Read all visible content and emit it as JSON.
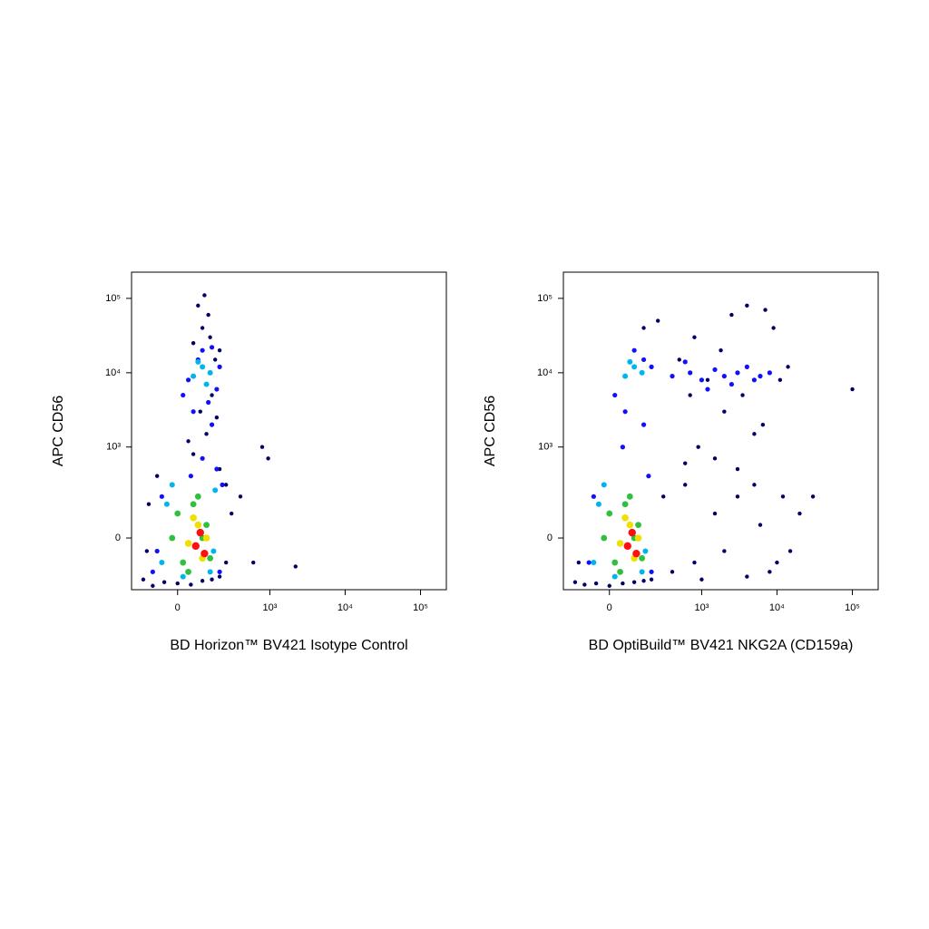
{
  "chart_data": [
    {
      "type": "scatter",
      "xscale": "biexponential",
      "yscale": "biexponential",
      "x_label": "BD Horizon™ BV421 Isotype Control",
      "y_label": "APC CD56",
      "xlim": [
        -230,
        220000
      ],
      "ylim": [
        -285,
        225000
      ],
      "xticks": [
        0,
        {
          "value": 1000,
          "label": "10³"
        },
        {
          "value": 10000,
          "label": "10⁴"
        },
        {
          "value": 100000,
          "label": "10⁵"
        }
      ],
      "yticks": [
        0,
        {
          "value": 1000,
          "label": "10³"
        },
        {
          "value": 10000,
          "label": "10⁴"
        },
        {
          "value": 100000,
          "label": "10⁵"
        }
      ],
      "series": [
        {
          "color": "#000066",
          "x": [
            -150,
            -100,
            -50,
            0,
            50,
            100,
            150,
            200,
            250,
            -120,
            300,
            200,
            -80,
            60,
            120,
            180,
            40,
            90,
            150,
            200,
            100,
            80,
            130,
            60,
            170,
            110,
            790,
            2200,
            950,
            600,
            400,
            -130,
            250,
            20,
            140
          ],
          "y": [
            -200,
            -250,
            -220,
            -230,
            -240,
            -210,
            -200,
            -180,
            -100,
            150,
            100,
            500,
            400,
            800,
            1500,
            2500,
            1200,
            3000,
            5000,
            20000,
            40000,
            80000,
            60000,
            25000,
            15000,
            110000,
            1000,
            -120,
            700,
            -100,
            200,
            -50,
            300,
            -180,
            30000
          ]
        },
        {
          "color": "#1010ff",
          "x": [
            20,
            60,
            100,
            150,
            200,
            40,
            180,
            80,
            130,
            -100,
            -60,
            200,
            220,
            -80,
            180,
            100,
            50,
            150
          ],
          "y": [
            5000,
            3000,
            20000,
            22000,
            12000,
            8000,
            6000,
            15000,
            4000,
            -150,
            200,
            -150,
            300,
            -50,
            500,
            700,
            400,
            2000
          ]
        },
        {
          "color": "#00b4f0",
          "x": [
            60,
            100,
            140,
            80,
            120,
            -60,
            -20,
            160,
            170,
            -40,
            140,
            20
          ],
          "y": [
            9000,
            12000,
            10000,
            14000,
            7000,
            -100,
            300,
            -50,
            250,
            150,
            -150,
            -180
          ]
        },
        {
          "color": "#30c040",
          "x": [
            -20,
            20,
            60,
            100,
            140,
            0,
            80,
            120,
            40
          ],
          "y": [
            0,
            -100,
            150,
            0,
            -80,
            100,
            200,
            50,
            -150
          ]
        },
        {
          "color": "#f0e000",
          "x": [
            40,
            80,
            100,
            60,
            120
          ],
          "y": [
            -20,
            50,
            -80,
            80,
            0
          ]
        },
        {
          "color": "#ff1010",
          "x": [
            70,
            90,
            110
          ],
          "y": [
            -30,
            20,
            -60
          ]
        }
      ]
    },
    {
      "type": "scatter",
      "xscale": "biexponential",
      "yscale": "biexponential",
      "x_label": "BD OptiBuild™ BV421 NKG2A (CD159a)",
      "y_label": "APC CD56",
      "xlim": [
        -230,
        220000
      ],
      "ylim": [
        -285,
        225000
      ],
      "xticks": [
        0,
        {
          "value": 1000,
          "label": "10³"
        },
        {
          "value": 10000,
          "label": "10⁴"
        },
        {
          "value": 100000,
          "label": "10⁵"
        }
      ],
      "yticks": [
        0,
        {
          "value": 1000,
          "label": "10³"
        },
        {
          "value": 10000,
          "label": "10⁴"
        },
        {
          "value": 100000,
          "label": "10⁵"
        }
      ],
      "series": [
        {
          "color": "#000066",
          "x": [
            -150,
            -100,
            -50,
            0,
            50,
            100,
            150,
            200,
            300,
            400,
            600,
            800,
            1000,
            1500,
            2000,
            3000,
            4000,
            5000,
            6000,
            8000,
            10000,
            12000,
            15000,
            20000,
            700,
            1200,
            2500,
            4000,
            7000,
            9000,
            600,
            900,
            1500,
            3000,
            5000,
            -130,
            100000,
            30000,
            800,
            2000,
            500,
            1800,
            3500,
            6500,
            11000,
            14000,
            250,
            150
          ],
          "y": [
            -220,
            -240,
            -230,
            -250,
            -230,
            -220,
            -210,
            -200,
            200,
            -150,
            300,
            -100,
            -200,
            100,
            -50,
            200,
            -180,
            300,
            50,
            -150,
            -100,
            200,
            -50,
            100,
            5000,
            8000,
            60000,
            80000,
            70000,
            40000,
            600,
            1000,
            700,
            500,
            1500,
            -100,
            6000,
            200,
            30000,
            3000,
            15000,
            20000,
            5000,
            2000,
            8000,
            12000,
            50000,
            40000
          ]
        },
        {
          "color": "#1010ff",
          "x": [
            20,
            60,
            100,
            150,
            200,
            400,
            700,
            1000,
            1500,
            2000,
            3000,
            4000,
            5000,
            6000,
            8000,
            -80,
            200,
            -60,
            180,
            50,
            150,
            1200,
            2500,
            600
          ],
          "y": [
            5000,
            3000,
            20000,
            15000,
            12000,
            9000,
            10000,
            8000,
            11000,
            9000,
            10000,
            12000,
            8000,
            9000,
            10000,
            -100,
            -150,
            200,
            400,
            1000,
            2000,
            6000,
            7000,
            14000
          ]
        },
        {
          "color": "#00b4f0",
          "x": [
            60,
            100,
            140,
            80,
            -60,
            -20,
            160,
            -40,
            140,
            20
          ],
          "y": [
            9000,
            12000,
            10000,
            14000,
            -100,
            300,
            -50,
            150,
            -150,
            -180
          ]
        },
        {
          "color": "#30c040",
          "x": [
            -20,
            20,
            60,
            100,
            140,
            0,
            80,
            120,
            40
          ],
          "y": [
            0,
            -100,
            150,
            0,
            -80,
            100,
            200,
            50,
            -150
          ]
        },
        {
          "color": "#f0e000",
          "x": [
            40,
            80,
            100,
            60,
            120
          ],
          "y": [
            -20,
            50,
            -80,
            80,
            0
          ]
        },
        {
          "color": "#ff1010",
          "x": [
            70,
            90,
            110
          ],
          "y": [
            -30,
            20,
            -60
          ]
        }
      ]
    }
  ]
}
